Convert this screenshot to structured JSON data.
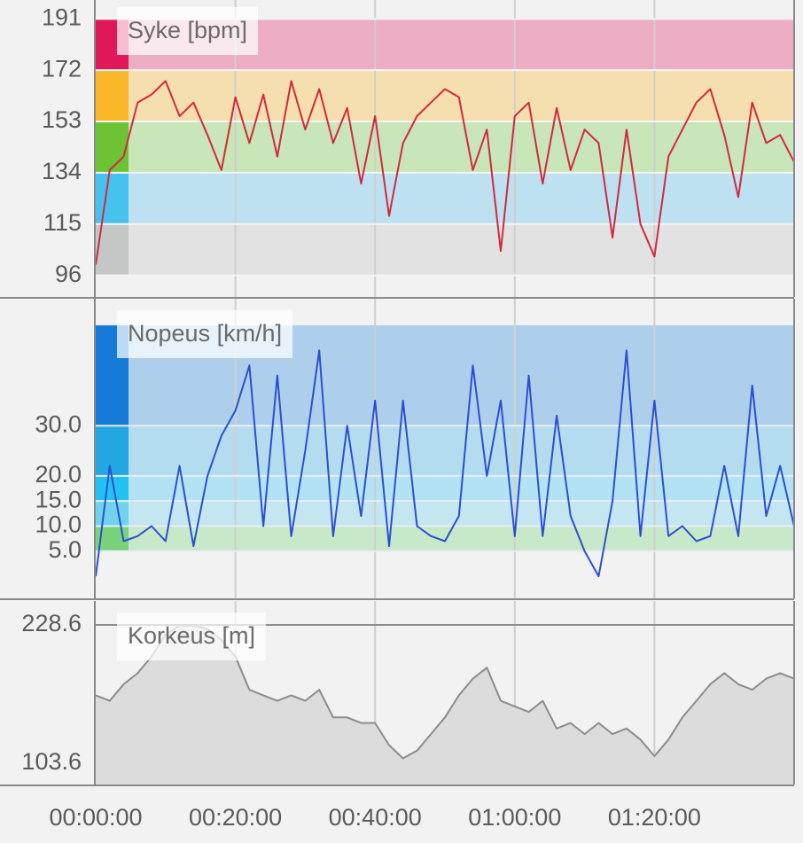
{
  "chart_data": [
    {
      "type": "line",
      "title": "Syke [bpm]",
      "color": "#d3293f",
      "x": [
        0,
        2,
        4,
        6,
        8,
        10,
        12,
        14,
        16,
        18,
        20,
        22,
        24,
        26,
        28,
        30,
        32,
        34,
        36,
        38,
        40,
        42,
        44,
        46,
        48,
        50,
        52,
        54,
        56,
        58,
        60,
        62,
        64,
        66,
        68,
        70,
        72,
        74,
        76,
        78,
        80,
        82,
        84,
        86,
        88,
        90,
        92,
        94,
        96,
        98,
        100
      ],
      "values": [
        100,
        135,
        140,
        160,
        163,
        168,
        155,
        160,
        148,
        135,
        162,
        145,
        163,
        140,
        168,
        150,
        165,
        145,
        158,
        130,
        155,
        118,
        145,
        155,
        160,
        165,
        162,
        135,
        150,
        105,
        155,
        160,
        130,
        158,
        135,
        150,
        145,
        110,
        150,
        115,
        103,
        140,
        150,
        160,
        165,
        148,
        125,
        160,
        145,
        148,
        138
      ],
      "xlim": [
        0,
        100
      ],
      "ylim": [
        88,
        198
      ],
      "yticks": [
        191,
        172,
        153,
        134,
        115,
        96
      ],
      "grid_color": "#f4f4f4",
      "zones": [
        {
          "from": 172,
          "to": 191,
          "color": "#edaec5",
          "strip": "#e0185a"
        },
        {
          "from": 153,
          "to": 172,
          "color": "#f6dfaf",
          "strip": "#f8b628"
        },
        {
          "from": 134,
          "to": 153,
          "color": "#c8e6b8",
          "strip": "#6cc434"
        },
        {
          "from": 115,
          "to": 134,
          "color": "#bde1f1",
          "strip": "#47c2ee"
        },
        {
          "from": 96,
          "to": 115,
          "color": "#e1e2e1",
          "strip": "#c4c7c6"
        }
      ]
    },
    {
      "type": "line",
      "title": "Nopeus [km/h]",
      "color": "#2b4fd3",
      "x": [
        0,
        2,
        4,
        6,
        8,
        10,
        12,
        14,
        16,
        18,
        20,
        22,
        24,
        26,
        28,
        30,
        32,
        34,
        36,
        38,
        40,
        42,
        44,
        46,
        48,
        50,
        52,
        54,
        56,
        58,
        60,
        62,
        64,
        66,
        68,
        70,
        72,
        74,
        76,
        78,
        80,
        82,
        84,
        86,
        88,
        90,
        92,
        94,
        96,
        98,
        100
      ],
      "values": [
        0,
        22,
        7,
        8,
        10,
        7,
        22,
        6,
        20,
        28,
        33,
        42,
        10,
        40,
        8,
        25,
        45,
        8,
        30,
        12,
        35,
        6,
        35,
        10,
        8,
        7,
        12,
        42,
        20,
        35,
        8,
        40,
        8,
        32,
        12,
        5,
        0,
        15,
        45,
        8,
        35,
        8,
        10,
        7,
        8,
        22,
        8,
        38,
        12,
        22,
        10
      ],
      "xlim": [
        0,
        100
      ],
      "ylim": [
        -4.4,
        55.3
      ],
      "yticks": [
        {
          "value": 30,
          "label": "30.0"
        },
        {
          "value": 20,
          "label": "20.0"
        },
        {
          "value": 15,
          "label": "15.0"
        },
        {
          "value": 10,
          "label": "10.0"
        },
        {
          "value": 5,
          "label": "5.0"
        }
      ],
      "grid_color": "#e6eef4",
      "zones": [
        {
          "from": 30,
          "to": 50,
          "color": "#aecfeb",
          "strip": "#157ad8"
        },
        {
          "from": 20,
          "to": 30,
          "color": "#b4dcef",
          "strip": "#21a6e2"
        },
        {
          "from": 15,
          "to": 20,
          "color": "#b3e2f5",
          "strip": "#22c3f2"
        },
        {
          "from": 10,
          "to": 15,
          "color": "#c3e6f0",
          "strip": "#6fd3ee"
        },
        {
          "from": 5,
          "to": 10,
          "color": "#c8e9c9",
          "strip": "#7ad27a"
        }
      ]
    },
    {
      "type": "area",
      "title": "Korkeus [m]",
      "color": "#8c8c8c",
      "fill": "#dcdcdc",
      "x": [
        0,
        2,
        4,
        6,
        8,
        10,
        12,
        14,
        16,
        18,
        20,
        22,
        24,
        26,
        28,
        30,
        32,
        34,
        36,
        38,
        40,
        42,
        44,
        46,
        48,
        50,
        52,
        54,
        56,
        58,
        60,
        62,
        64,
        66,
        68,
        70,
        72,
        74,
        76,
        78,
        80,
        82,
        84,
        86,
        88,
        90,
        92,
        94,
        96,
        98,
        100
      ],
      "values": [
        165,
        160,
        175,
        185,
        200,
        220,
        228,
        228,
        225,
        215,
        200,
        170,
        165,
        160,
        165,
        160,
        170,
        145,
        145,
        140,
        140,
        120,
        108,
        115,
        130,
        145,
        165,
        180,
        190,
        160,
        155,
        150,
        160,
        135,
        140,
        130,
        140,
        130,
        135,
        125,
        110,
        125,
        145,
        160,
        175,
        185,
        175,
        170,
        180,
        185,
        180
      ],
      "xlim": [
        0,
        100
      ],
      "ylim": [
        84.4,
        250.2
      ],
      "yticks": [
        228.6,
        103.6
      ],
      "grid_color": "#8e8e8e",
      "xticks": [
        {
          "value": 0,
          "label": "00:00:00"
        },
        {
          "value": 20,
          "label": "00:20:00"
        },
        {
          "value": 40,
          "label": "00:40:00"
        },
        {
          "value": 60,
          "label": "01:00:00"
        },
        {
          "value": 80,
          "label": "01:20:00"
        }
      ]
    }
  ]
}
